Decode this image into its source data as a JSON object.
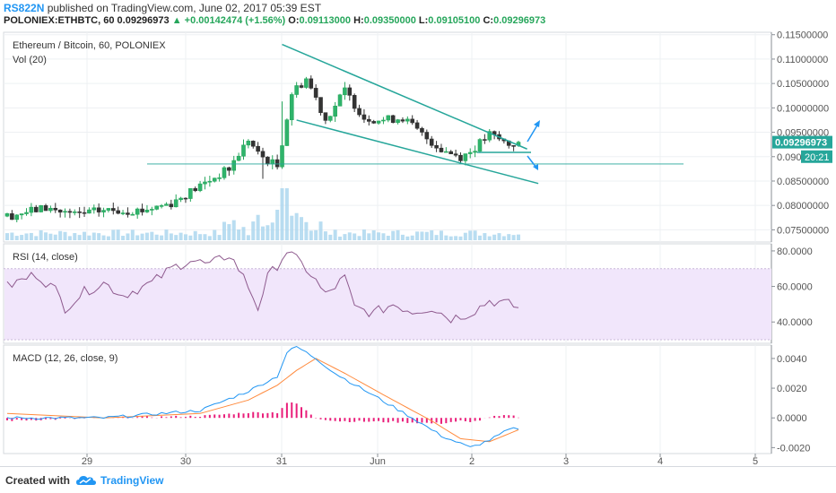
{
  "header": {
    "author": "RS822N",
    "published_text": "published on TradingView.com, June 02, 2017 05:39 EST",
    "symbol": "POLONIEX:ETHBTC, 60",
    "last": "0.09296973",
    "change_arrow": "▲",
    "change": "+0.00142474 (+1.56%)",
    "o_label": "O:",
    "o_value": "0.09113000",
    "h_label": "H:",
    "h_value": "0.09350000",
    "l_label": "L:",
    "l_value": "0.09105100",
    "c_label": "C:",
    "c_value": "0.09296973"
  },
  "footer": {
    "created_with": "Created with",
    "brand": "TradingView",
    "logo_icon": "tradingview-cloud-icon"
  },
  "colors": {
    "up": "#26a65b",
    "down": "#333333",
    "trend": "#26a69a",
    "arrow": "#2196f3",
    "volume": "#a8d4ee",
    "rsi_line": "#8e5a8e",
    "rsi_band": "#f1e6fb",
    "macd_line": "#2196f3",
    "signal_line": "#ff8a3d",
    "histogram": "#e91e7a",
    "price_label": "#26a69a",
    "grid": "#eef0f3"
  },
  "chart_data": [
    {
      "type": "candlestick",
      "title": "Ethereum / Bitcoin, 60, POLONIEX",
      "x_ticks": [
        "29",
        "30",
        "31",
        "Jun",
        "2",
        "3",
        "4",
        "5"
      ],
      "y_ticks": [
        "0.11500000",
        "0.11000000",
        "0.10500000",
        "0.10000000",
        "0.09500000",
        "0.09000000",
        "0.08500000",
        "0.08000000",
        "0.07500000"
      ],
      "ylim": [
        0.0725,
        0.1155
      ],
      "last_price_label": "0.09296973",
      "countdown_label": "20:21",
      "countdown_price_prefix": "0.090",
      "candle_count": 107,
      "close_anchors": [
        [
          0,
          0.0778
        ],
        [
          8,
          0.0795
        ],
        [
          14,
          0.078
        ],
        [
          20,
          0.079
        ],
        [
          28,
          0.079
        ],
        [
          34,
          0.0805
        ],
        [
          40,
          0.084
        ],
        [
          46,
          0.0875
        ],
        [
          50,
          0.0935
        ],
        [
          52,
          0.0905
        ],
        [
          56,
          0.088
        ],
        [
          59,
          0.103
        ],
        [
          62,
          0.106
        ],
        [
          64,
          0.102
        ],
        [
          66,
          0.0975
        ],
        [
          70,
          0.1035
        ],
        [
          74,
          0.098
        ],
        [
          78,
          0.0975
        ],
        [
          82,
          0.098
        ],
        [
          86,
          0.0945
        ],
        [
          90,
          0.0915
        ],
        [
          94,
          0.09
        ],
        [
          96,
          0.091
        ],
        [
          100,
          0.0945
        ],
        [
          104,
          0.0925
        ],
        [
          106,
          0.093
        ]
      ],
      "channel_upper": [
        [
          57,
          0.113
        ],
        [
          105,
          0.0923
        ]
      ],
      "channel_lower": [
        [
          60,
          0.0975
        ],
        [
          109,
          0.0845
        ]
      ],
      "horizontal_line": 0.0885,
      "breakout_arrows": [
        "up",
        "down"
      ]
    },
    {
      "type": "bar",
      "name": "Vol (20)",
      "note": "volume histogram overlaid at bottom of price pane"
    },
    {
      "type": "line",
      "title": "RSI (14, close)",
      "y_ticks": [
        "80.0000",
        "60.0000",
        "40.0000"
      ],
      "ylim": [
        28,
        84
      ],
      "band": [
        30,
        70
      ],
      "anchors": [
        [
          0,
          60
        ],
        [
          6,
          67
        ],
        [
          10,
          58
        ],
        [
          12,
          48
        ],
        [
          16,
          57
        ],
        [
          20,
          62
        ],
        [
          24,
          55
        ],
        [
          30,
          62
        ],
        [
          34,
          70
        ],
        [
          38,
          75
        ],
        [
          42,
          72
        ],
        [
          46,
          78
        ],
        [
          48,
          70
        ],
        [
          50,
          60
        ],
        [
          52,
          48
        ],
        [
          54,
          65
        ],
        [
          56,
          72
        ],
        [
          58,
          80
        ],
        [
          60,
          75
        ],
        [
          62,
          70
        ],
        [
          64,
          63
        ],
        [
          66,
          55
        ],
        [
          70,
          65
        ],
        [
          72,
          48
        ],
        [
          76,
          45
        ],
        [
          80,
          50
        ],
        [
          84,
          46
        ],
        [
          88,
          48
        ],
        [
          92,
          42
        ],
        [
          96,
          45
        ],
        [
          100,
          52
        ],
        [
          104,
          50
        ],
        [
          106,
          48
        ]
      ]
    },
    {
      "type": "line",
      "title": "MACD (12, 26, close, 9)",
      "y_ticks": [
        "0.0040",
        "0.0020",
        "0.0000",
        "-0.0020"
      ],
      "ylim": [
        -0.0024,
        0.0049
      ],
      "macd_anchors": [
        [
          0,
          0
        ],
        [
          20,
          0
        ],
        [
          40,
          0.0005
        ],
        [
          50,
          0.0018
        ],
        [
          56,
          0.0028
        ],
        [
          58,
          0.0044
        ],
        [
          60,
          0.0048
        ],
        [
          64,
          0.004
        ],
        [
          68,
          0.003
        ],
        [
          76,
          0.0015
        ],
        [
          84,
          0
        ],
        [
          90,
          -0.0012
        ],
        [
          96,
          -0.002
        ],
        [
          100,
          -0.0015
        ],
        [
          104,
          -0.0008
        ],
        [
          106,
          -0.0007
        ]
      ],
      "signal_anchors": [
        [
          0,
          0.0003
        ],
        [
          20,
          0
        ],
        [
          40,
          0.0003
        ],
        [
          50,
          0.0012
        ],
        [
          56,
          0.0022
        ],
        [
          60,
          0.0032
        ],
        [
          64,
          0.004
        ],
        [
          70,
          0.003
        ],
        [
          80,
          0.0012
        ],
        [
          88,
          -0.0002
        ],
        [
          94,
          -0.0014
        ],
        [
          100,
          -0.0016
        ],
        [
          106,
          -0.0008
        ]
      ]
    }
  ]
}
